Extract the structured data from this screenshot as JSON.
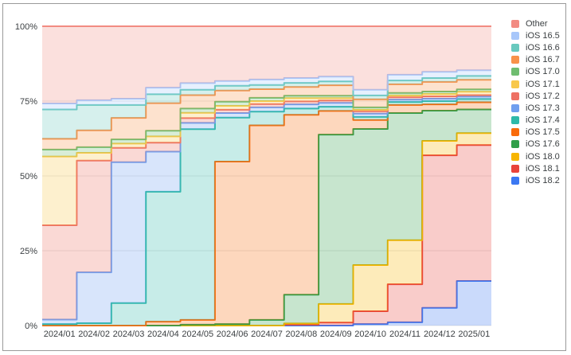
{
  "window": {
    "background": "#ffffff",
    "border_color": "#9a9a9a"
  },
  "axes": {
    "y_tick_labels": [
      "100%",
      "75%",
      "50%",
      "25%",
      "0%"
    ],
    "y_tick_values": [
      100,
      75,
      50,
      25,
      0
    ],
    "label_color": "#3c4043",
    "gridline_color": "#e7e7e7"
  },
  "chart_data": {
    "type": "area",
    "variant": "stacked-step",
    "title": "",
    "xlabel": "",
    "ylabel": "",
    "ylim": [
      0,
      100
    ],
    "grid": "horizontal",
    "legend_position": "right",
    "stack_total": 100,
    "fill_opacity": 0.27,
    "stroke_width": 2,
    "categories": [
      "2024/01",
      "2024/02",
      "2024/03",
      "2024/04",
      "2024/05",
      "2024/06",
      "2024/07",
      "2024/08",
      "2024/09",
      "2024/10",
      "2024/11",
      "2024/12",
      "2025/01"
    ],
    "series": [
      {
        "name": "Other",
        "color": "#F28B82",
        "values": [
          25.8,
          24.7,
          24.2,
          20.5,
          19.0,
          18.3,
          17.8,
          17.3,
          16.8,
          21.2,
          16.2,
          15.2,
          14.7
        ]
      },
      {
        "name": "iOS 16.5",
        "color": "#A8C7FA",
        "values": [
          2.0,
          1.6,
          2.1,
          2.2,
          2.2,
          1.6,
          1.8,
          1.6,
          1.6,
          1.9,
          1.9,
          2.1,
          1.9
        ]
      },
      {
        "name": "iOS 16.6",
        "color": "#68C9BE",
        "values": [
          9.8,
          8.5,
          4.3,
          3.0,
          1.8,
          1.6,
          1.4,
          1.4,
          1.3,
          1.3,
          1.3,
          1.3,
          1.3
        ]
      },
      {
        "name": "iOS 16.7",
        "color": "#F8924A",
        "values": [
          3.6,
          5.6,
          7.2,
          9.2,
          4.5,
          3.7,
          2.9,
          2.9,
          3.5,
          2.7,
          2.9,
          3.2,
          3.2
        ]
      },
      {
        "name": "iOS 17.0",
        "color": "#6FBD70",
        "values": [
          2.3,
          1.9,
          1.4,
          1.9,
          1.4,
          1.4,
          1.1,
          0.8,
          0.8,
          0.8,
          0.8,
          0.8,
          0.8
        ]
      },
      {
        "name": "iOS 17.1",
        "color": "#F8C84B",
        "values": [
          23.0,
          2.6,
          1.4,
          2.1,
          1.8,
          1.3,
          1.0,
          1.1,
          0.8,
          0.5,
          0.6,
          0.8,
          1.1
        ]
      },
      {
        "name": "iOS 17.2",
        "color": "#EE7164",
        "values": [
          31.5,
          37.3,
          4.8,
          3.0,
          1.6,
          1.1,
          1.1,
          1.0,
          0.8,
          0.8,
          0.8,
          0.8,
          0.5
        ]
      },
      {
        "name": "iOS 17.3",
        "color": "#6F9FEF",
        "values": [
          1.5,
          17.0,
          47.1,
          13.4,
          2.1,
          1.5,
          1.4,
          1.4,
          1.3,
          1.1,
          0.8,
          0.8,
          0.8
        ]
      },
      {
        "name": "iOS 17.4",
        "color": "#2FB9A9",
        "values": [
          0.5,
          0.8,
          7.5,
          43.4,
          63.7,
          14.7,
          4.6,
          2.1,
          1.4,
          1.0,
          1.0,
          1.1,
          1.1
        ]
      },
      {
        "name": "iOS 17.5",
        "color": "#F96B0B",
        "values": [
          0,
          0,
          0,
          1.3,
          1.6,
          54.3,
          65.0,
          60.1,
          7.9,
          3.0,
          2.7,
          2.1,
          2.4
        ]
      },
      {
        "name": "iOS 17.6",
        "color": "#2F9E49",
        "values": [
          0,
          0,
          0,
          0,
          0.3,
          0.5,
          1.9,
          9.6,
          56.6,
          45.5,
          42.5,
          10.1,
          7.9
        ]
      },
      {
        "name": "iOS 18.0",
        "color": "#F7B500",
        "values": [
          0,
          0,
          0,
          0,
          0,
          0,
          0,
          0.4,
          6.2,
          15.4,
          14.7,
          4.8,
          4.0
        ]
      },
      {
        "name": "iOS 18.1",
        "color": "#E9433A",
        "values": [
          0,
          0,
          0,
          0,
          0,
          0,
          0,
          0.3,
          1.0,
          4.3,
          12.7,
          51.0,
          45.4
        ]
      },
      {
        "name": "iOS 18.2",
        "color": "#3B78F2",
        "values": [
          0,
          0,
          0,
          0,
          0,
          0,
          0,
          0,
          0,
          0.5,
          1.1,
          5.9,
          14.9
        ]
      }
    ]
  }
}
